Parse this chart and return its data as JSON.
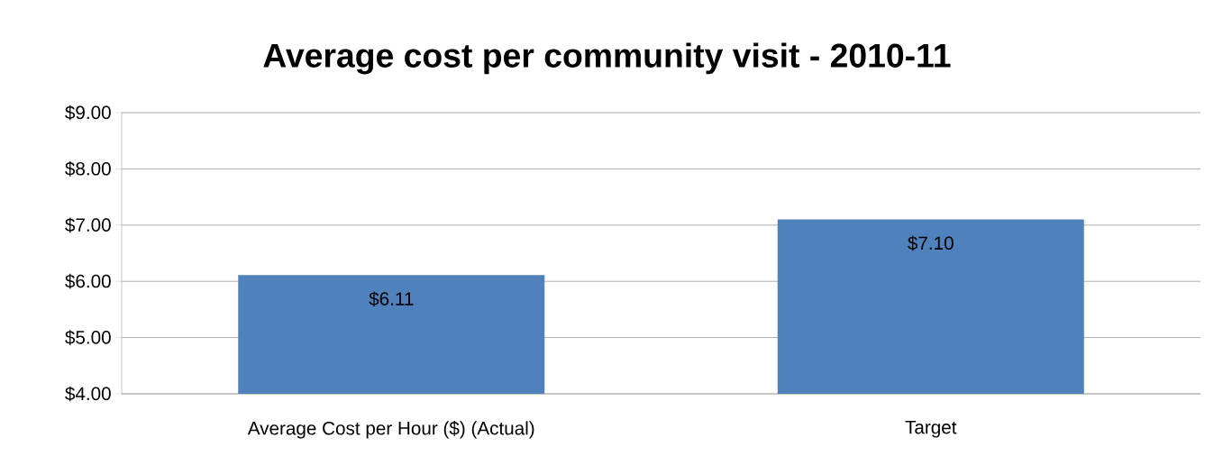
{
  "chart_data": {
    "type": "bar",
    "title": "Average cost per community visit - 2010-11",
    "categories": [
      "Average Cost per Hour ($) (Actual)",
      "Target"
    ],
    "values": [
      6.11,
      7.1
    ],
    "color": "#4f81bd",
    "value_labels": [
      "$6.11",
      "$7.10"
    ],
    "ylim": [
      4,
      9
    ],
    "yticks": [
      {
        "value": 4,
        "label": "$4.00"
      },
      {
        "value": 5,
        "label": "$5.00"
      },
      {
        "value": 6,
        "label": "$6.00"
      },
      {
        "value": 7,
        "label": "$7.00"
      },
      {
        "value": 8,
        "label": "$8.00"
      },
      {
        "value": 9,
        "label": "$9.00"
      }
    ],
    "grid": "y"
  }
}
